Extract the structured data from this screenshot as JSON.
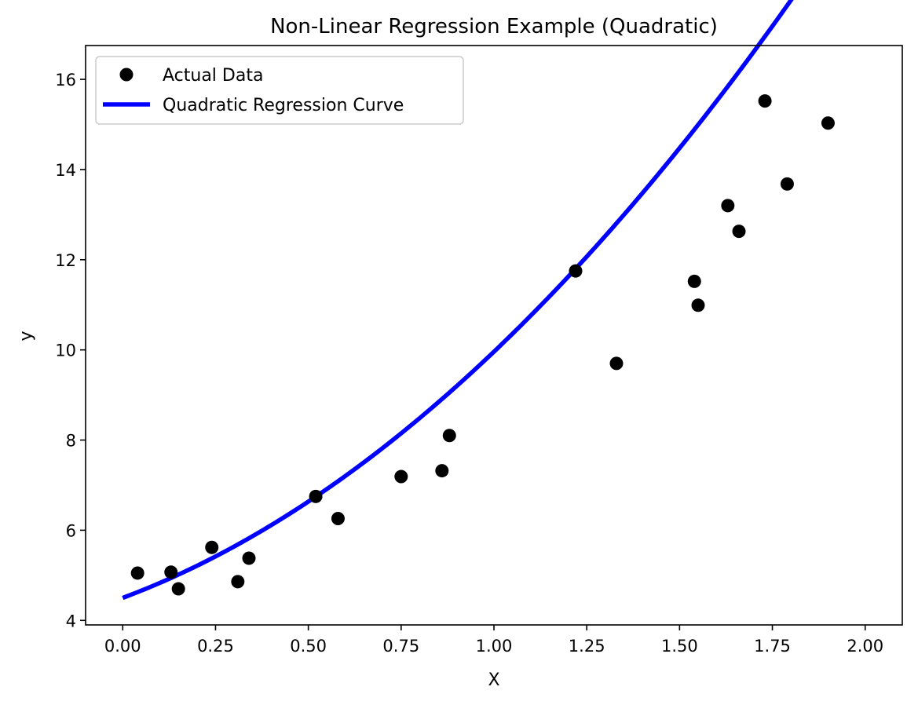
{
  "chart_data": {
    "type": "scatter",
    "title": "Non-Linear Regression Example (Quadratic)",
    "xlabel": "X",
    "ylabel": "y",
    "xlim": [
      -0.1,
      2.1
    ],
    "ylim": [
      3.9,
      16.75
    ],
    "xticks": [
      0.0,
      0.25,
      0.5,
      0.75,
      1.0,
      1.25,
      1.5,
      1.75,
      2.0
    ],
    "xtick_labels": [
      "0.00",
      "0.25",
      "0.50",
      "0.75",
      "1.00",
      "1.25",
      "1.50",
      "1.75",
      "2.00"
    ],
    "yticks": [
      4,
      6,
      8,
      10,
      12,
      14,
      16
    ],
    "ytick_labels": [
      "4",
      "6",
      "8",
      "10",
      "12",
      "14",
      "16"
    ],
    "grid": false,
    "legend_position": "top-left",
    "series": [
      {
        "name": "Actual Data",
        "kind": "scatter",
        "color": "#000000",
        "x": [
          0.04,
          0.13,
          0.15,
          0.24,
          0.31,
          0.34,
          0.52,
          0.58,
          0.75,
          0.86,
          0.88,
          1.22,
          1.33,
          1.54,
          1.55,
          1.63,
          1.66,
          1.73,
          1.79,
          1.9
        ],
        "y": [
          5.05,
          5.07,
          4.7,
          5.62,
          4.86,
          5.38,
          6.75,
          6.26,
          7.19,
          7.32,
          8.1,
          11.75,
          9.7,
          11.52,
          10.99,
          13.2,
          12.63,
          15.52,
          13.68,
          15.03
        ]
      },
      {
        "name": "Quadratic Regression Curve",
        "kind": "line",
        "color": "#0000ff",
        "coefficients": {
          "a": 2.38,
          "b": 3.08,
          "c": 4.5
        },
        "x_range": [
          0,
          2
        ]
      }
    ]
  }
}
